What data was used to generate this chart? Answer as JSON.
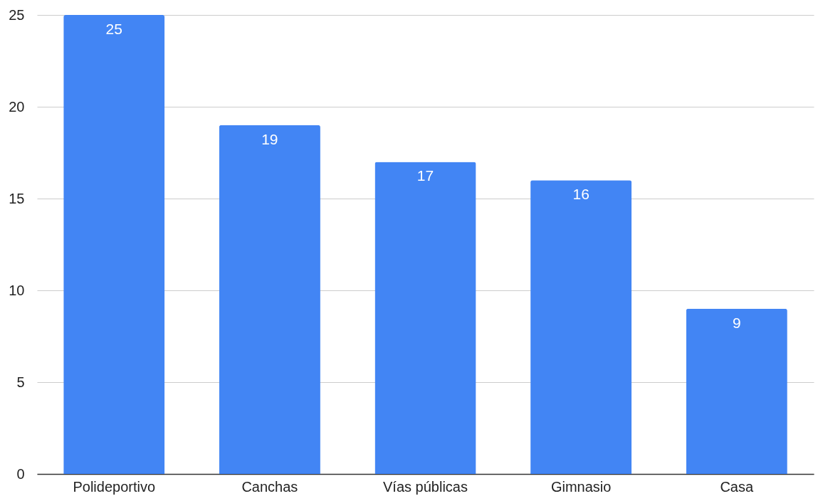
{
  "chart_data": {
    "type": "bar",
    "categories": [
      "Polideportivo",
      "Canchas",
      "Vías públicas",
      "Gimnasio",
      "Casa"
    ],
    "values": [
      25,
      19,
      17,
      16,
      9
    ],
    "color": "#4285f4",
    "ylim": [
      0,
      25
    ],
    "yticks": [
      0,
      5,
      10,
      15,
      20,
      25
    ],
    "grid": "y",
    "data_labels": true
  }
}
